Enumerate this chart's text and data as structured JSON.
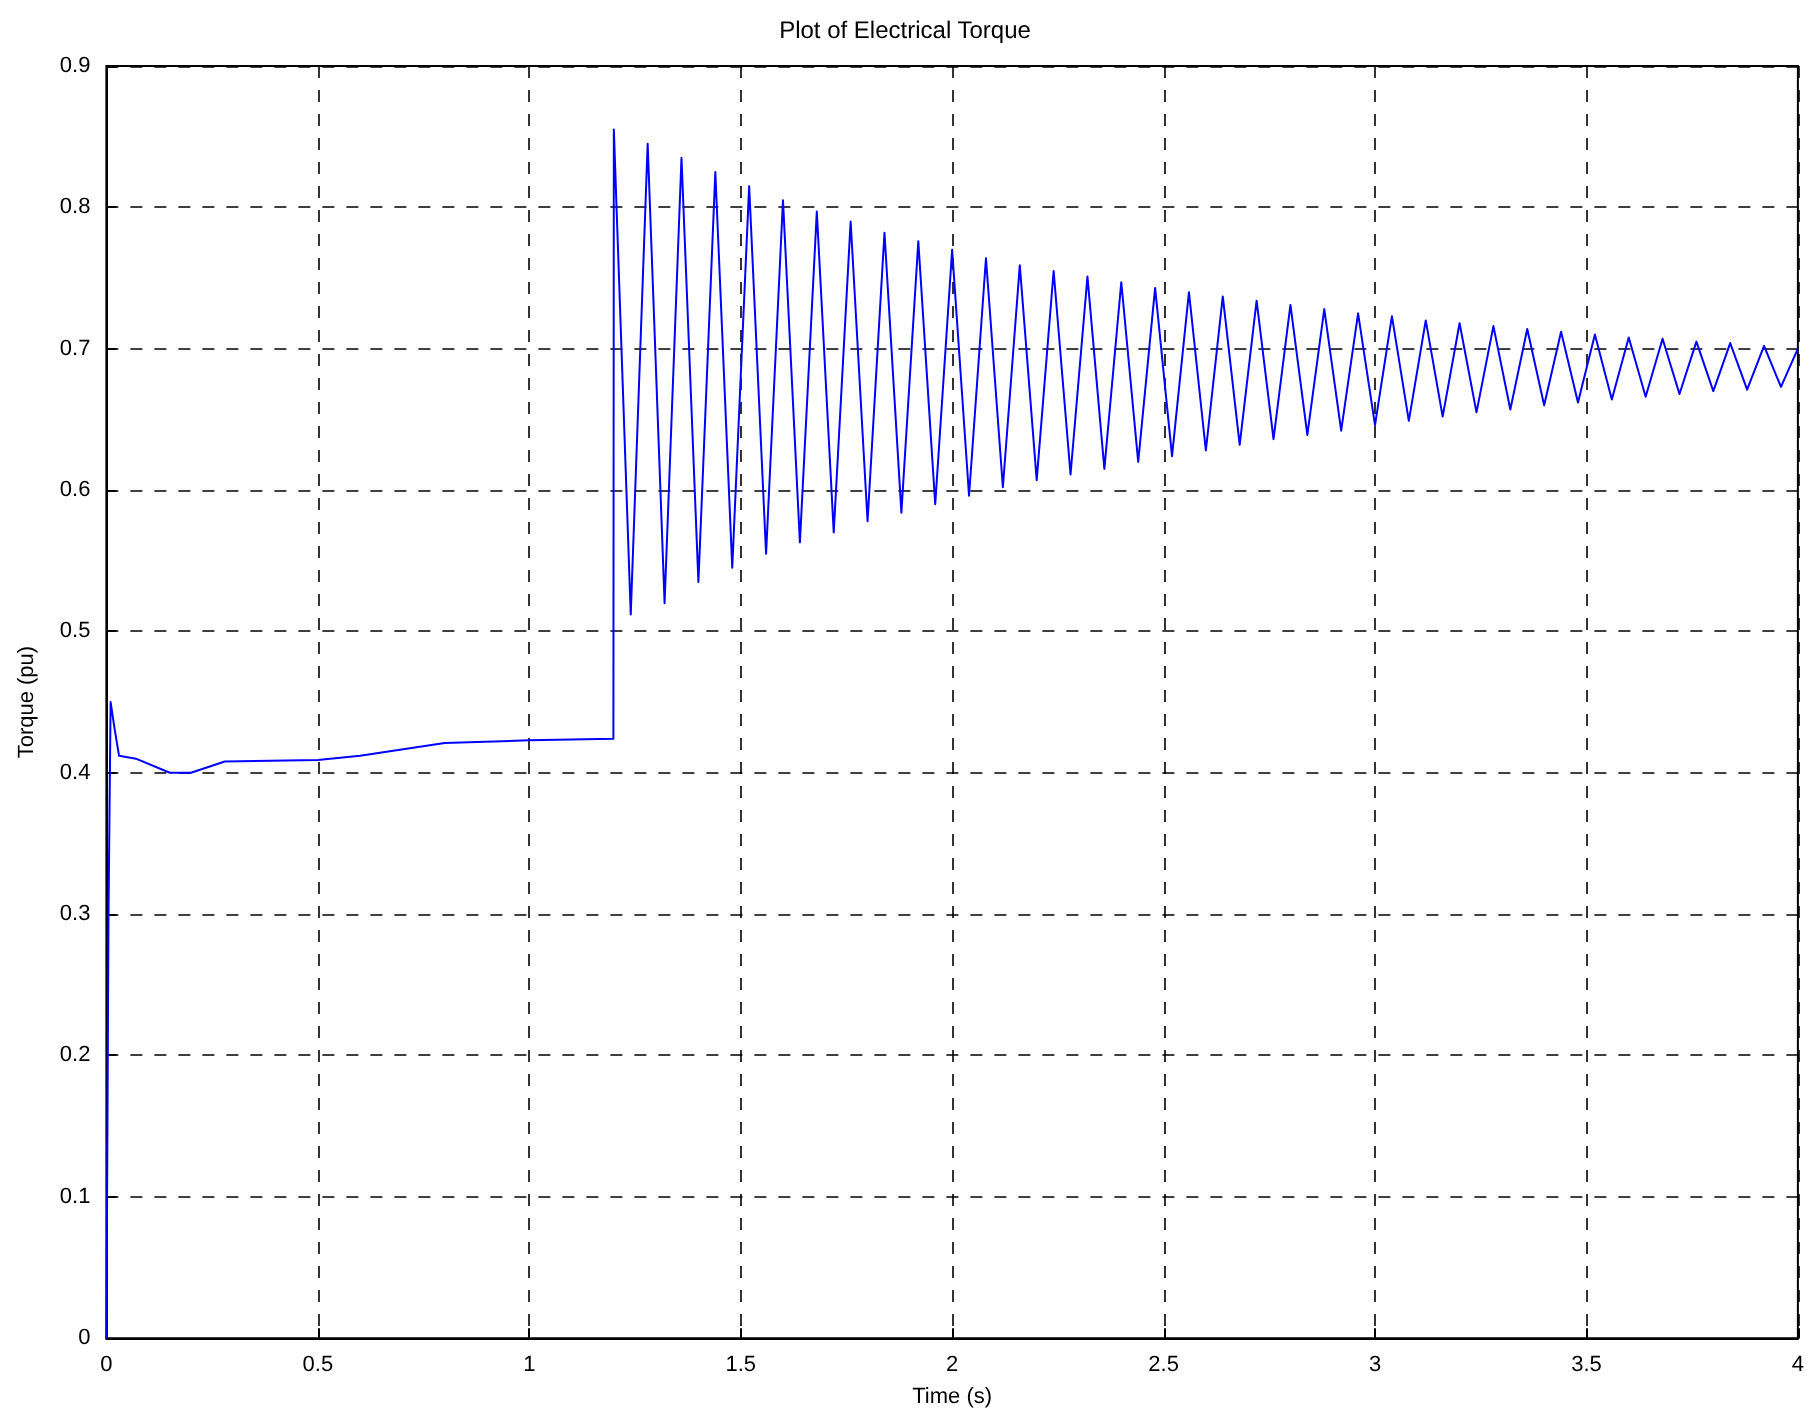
{
  "chart_data": {
    "type": "line",
    "title": "Plot of Electrical Torque",
    "xlabel": "Time (s)",
    "ylabel": "Torque (pu)",
    "xlim": [
      0,
      4
    ],
    "xticks": [
      0,
      0.5,
      1,
      1.5,
      2,
      2.5,
      3,
      3.5,
      4
    ],
    "ylim": [
      0,
      0.9
    ],
    "yticks": [
      0,
      0.1,
      0.2,
      0.3,
      0.4,
      0.5,
      0.6,
      0.7,
      0.8,
      0.9
    ],
    "grid": true,
    "marker": "none",
    "line_style": "solid",
    "series": [
      {
        "color": "#0000ff",
        "x": [
          0,
          0.005,
          0.01,
          0.02,
          0.03,
          0.07,
          0.15,
          0.2,
          0.28,
          0.5,
          0.6,
          0.8,
          1.0,
          1.199,
          1.2,
          1.24,
          1.28,
          1.32,
          1.36,
          1.4,
          1.44,
          1.48,
          1.52,
          1.56,
          1.6,
          1.64,
          1.68,
          1.72,
          1.76,
          1.8,
          1.84,
          1.88,
          1.92,
          1.96,
          2.0,
          2.04,
          2.08,
          2.12,
          2.16,
          2.2,
          2.24,
          2.28,
          2.32,
          2.36,
          2.4,
          2.44,
          2.48,
          2.52,
          2.56,
          2.6,
          2.64,
          2.68,
          2.72,
          2.76,
          2.8,
          2.84,
          2.88,
          2.92,
          2.96,
          3.0,
          3.04,
          3.08,
          3.12,
          3.16,
          3.2,
          3.24,
          3.28,
          3.32,
          3.36,
          3.4,
          3.44,
          3.48,
          3.52,
          3.56,
          3.6,
          3.64,
          3.68,
          3.72,
          3.76,
          3.8,
          3.84,
          3.88,
          3.92,
          3.96,
          4.0
        ],
        "values": [
          0,
          0.3,
          0.45,
          0.43,
          0.412,
          0.41,
          0.4,
          0.4,
          0.408,
          0.409,
          0.412,
          0.421,
          0.423,
          0.424,
          0.855,
          0.512,
          0.845,
          0.52,
          0.835,
          0.535,
          0.825,
          0.545,
          0.815,
          0.555,
          0.805,
          0.563,
          0.797,
          0.57,
          0.79,
          0.578,
          0.782,
          0.584,
          0.776,
          0.59,
          0.77,
          0.596,
          0.764,
          0.602,
          0.759,
          0.607,
          0.755,
          0.611,
          0.751,
          0.615,
          0.747,
          0.62,
          0.743,
          0.624,
          0.74,
          0.628,
          0.737,
          0.632,
          0.734,
          0.636,
          0.731,
          0.639,
          0.728,
          0.642,
          0.725,
          0.646,
          0.723,
          0.649,
          0.72,
          0.652,
          0.718,
          0.655,
          0.716,
          0.657,
          0.714,
          0.66,
          0.712,
          0.662,
          0.71,
          0.664,
          0.708,
          0.666,
          0.707,
          0.668,
          0.705,
          0.67,
          0.704,
          0.671,
          0.702,
          0.673,
          0.7
        ]
      }
    ]
  }
}
